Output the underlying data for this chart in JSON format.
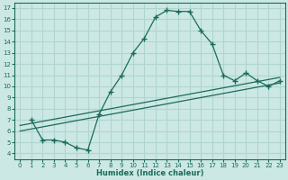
{
  "xlabel": "Humidex (Indice chaleur)",
  "bg_color": "#cce8e5",
  "grid_color": "#b0d5d0",
  "line_color": "#1a6b5a",
  "xlim": [
    -0.5,
    23.5
  ],
  "ylim": [
    3.5,
    17.5
  ],
  "xticks": [
    0,
    1,
    2,
    3,
    4,
    5,
    6,
    7,
    8,
    9,
    10,
    11,
    12,
    13,
    14,
    15,
    16,
    17,
    18,
    19,
    20,
    21,
    22,
    23
  ],
  "yticks": [
    4,
    5,
    6,
    7,
    8,
    9,
    10,
    11,
    12,
    13,
    14,
    15,
    16,
    17
  ],
  "line1_x": [
    1,
    2,
    3,
    4,
    5,
    6,
    7,
    8,
    9,
    10,
    11,
    12,
    13,
    14,
    15,
    16,
    17,
    18,
    19,
    20,
    21,
    22,
    23
  ],
  "line1_y": [
    7.0,
    5.2,
    5.2,
    5.0,
    4.5,
    4.3,
    7.5,
    9.5,
    11.0,
    13.0,
    14.3,
    16.2,
    16.8,
    16.7,
    16.7,
    15.0,
    13.8,
    11.0,
    10.5,
    11.2,
    10.5,
    10.0,
    10.5
  ],
  "line2_x": [
    0,
    23
  ],
  "line2_y": [
    6.5,
    10.8
  ],
  "line3_x": [
    0,
    23
  ],
  "line3_y": [
    6.0,
    10.3
  ]
}
